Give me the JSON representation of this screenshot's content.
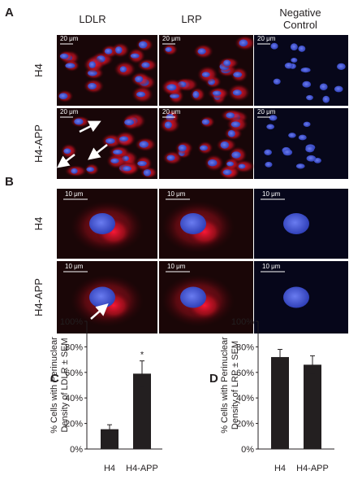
{
  "panel_a": {
    "label": "A",
    "columns": [
      "LDLR",
      "LRP"
    ],
    "negative_control": [
      "Negative",
      "Control"
    ],
    "rows": [
      "H4",
      "H4-APP"
    ],
    "scale_bar": "20 μm"
  },
  "panel_b": {
    "label": "B",
    "rows": [
      "H4",
      "H4-APP"
    ],
    "scale_bar": "10 μm"
  },
  "chart_data": [
    {
      "type": "bar",
      "panel": "C",
      "ylabel": [
        "% Cells with Perinuclear",
        "Density of LDLR ± SEM"
      ],
      "categories": [
        "H4",
        "H4-APP"
      ],
      "values": [
        15.5,
        59
      ],
      "errors": [
        3.5,
        10
      ],
      "color": "#231f20",
      "annotation": "*",
      "ylim": [
        0,
        100
      ],
      "yticks": [
        {
          "value": 0,
          "label": "0%"
        },
        {
          "value": 20,
          "label": "20%"
        },
        {
          "value": 40,
          "label": "40%"
        },
        {
          "value": 60,
          "label": "60%"
        },
        {
          "value": 80,
          "label": "80%"
        },
        {
          "value": 100,
          "label": "100%"
        }
      ]
    },
    {
      "type": "bar",
      "panel": "D",
      "ylabel": [
        "% Cells with Perinuclear",
        "Density of LRP ± SEM"
      ],
      "categories": [
        "H4",
        "H4-APP"
      ],
      "values": [
        72,
        66
      ],
      "errors": [
        6,
        7
      ],
      "color": "#231f20",
      "ylim": [
        0,
        100
      ],
      "yticks": [
        {
          "value": 0,
          "label": "0%"
        },
        {
          "value": 20,
          "label": "20%"
        },
        {
          "value": 40,
          "label": "40%"
        },
        {
          "value": 60,
          "label": "60%"
        },
        {
          "value": 80,
          "label": "80%"
        },
        {
          "value": 100,
          "label": "100%"
        }
      ]
    }
  ]
}
